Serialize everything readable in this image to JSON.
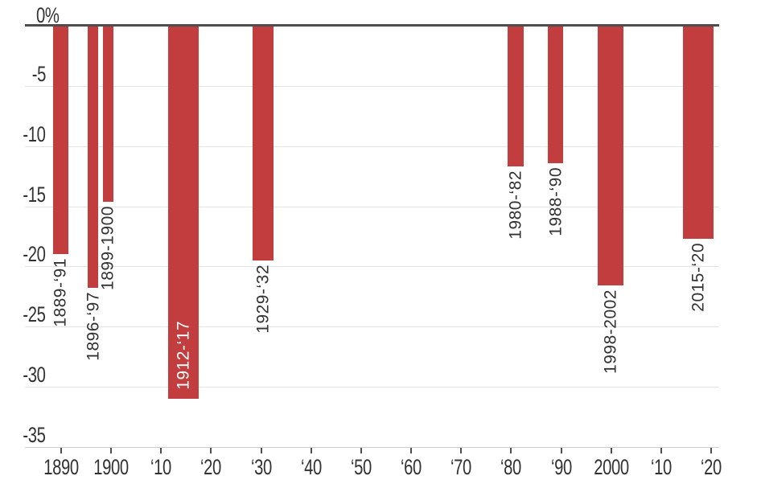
{
  "chart_data": {
    "type": "bar",
    "title": "",
    "y_axis": {
      "tick_labels": [
        "0%",
        "-5",
        "-10",
        "-15",
        "-20",
        "-25",
        "-30",
        "-35"
      ],
      "tick_values": [
        0,
        -5,
        -10,
        -15,
        -20,
        -25,
        -30,
        -35
      ],
      "ylim": [
        -35,
        0
      ],
      "unit": "percent",
      "grid": true
    },
    "x_axis": {
      "tick_labels": [
        "1890",
        "1900",
        "‘10",
        "‘20",
        "‘30",
        "‘40",
        "‘50",
        "‘60",
        "‘70",
        "‘80",
        "‘90",
        "2000",
        "‘10",
        "‘20"
      ],
      "tick_years": [
        1890,
        1900,
        1910,
        1920,
        1930,
        1940,
        1950,
        1960,
        1970,
        1980,
        1990,
        2000,
        2010,
        2020
      ],
      "xlim": [
        1883,
        2021.6
      ]
    },
    "bars": [
      {
        "label": "1889-‘91",
        "start_year": 1889,
        "end_year": 1891,
        "value": -19.0,
        "label_placement": "below"
      },
      {
        "label": "1896-‘97",
        "start_year": 1896,
        "end_year": 1897,
        "value": -21.8,
        "label_placement": "below"
      },
      {
        "label": "1899-1900",
        "start_year": 1899,
        "end_year": 1900,
        "value": -14.6,
        "label_placement": "below"
      },
      {
        "label": "1912-‘17",
        "start_year": 1912,
        "end_year": 1917,
        "value": -31.0,
        "label_placement": "inside"
      },
      {
        "label": "1929-‘32",
        "start_year": 1929,
        "end_year": 1932,
        "value": -19.5,
        "label_placement": "below"
      },
      {
        "label": "1980-‘82",
        "start_year": 1980,
        "end_year": 1982,
        "value": -11.7,
        "label_placement": "below"
      },
      {
        "label": "1988-‘90",
        "start_year": 1988,
        "end_year": 1990,
        "value": -11.4,
        "label_placement": "below"
      },
      {
        "label": "1998-2002",
        "start_year": 1998,
        "end_year": 2002,
        "value": -21.6,
        "label_placement": "below"
      },
      {
        "label": "2015-‘20",
        "start_year": 2015,
        "end_year": 2020,
        "value": -17.7,
        "label_placement": "below"
      }
    ],
    "colors": {
      "bar": "#c23e3e",
      "zero_line": "#4d4d4d",
      "gridline": "#e3e3e3",
      "axis_line": "#cfcfcf",
      "tick": "#4d4d4d",
      "text": "#323232",
      "bar_label_inside": "#ffffff"
    },
    "legend": null
  }
}
